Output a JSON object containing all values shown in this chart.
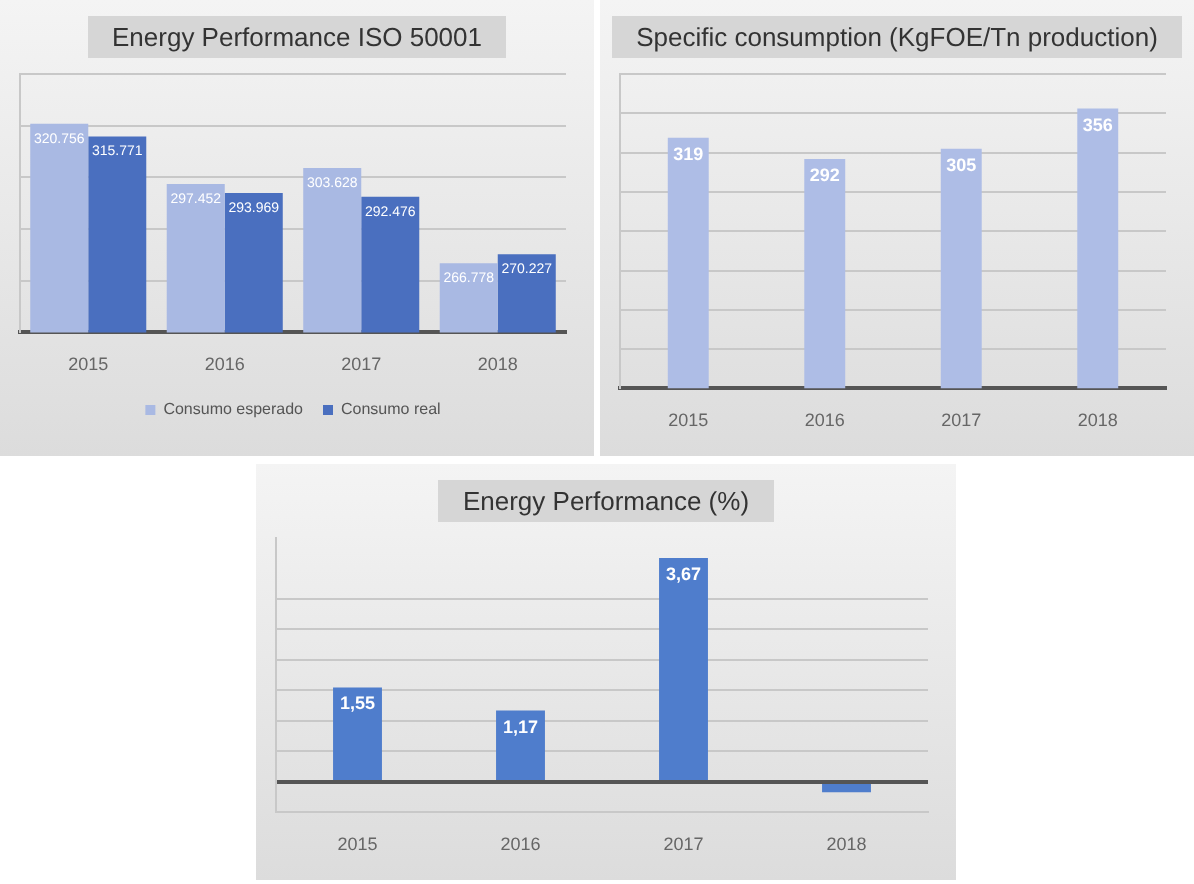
{
  "chart_data": [
    {
      "type": "bar",
      "title": "Energy Performance ISO 50001",
      "categories": [
        "2015",
        "2016",
        "2017",
        "2018"
      ],
      "series": [
        {
          "name": "Consumo esperado",
          "color": "#a9b9e3",
          "values": [
            320.756,
            297.452,
            303.628,
            266.778
          ]
        },
        {
          "name": "Consumo real",
          "color": "#4a6fbf",
          "values": [
            315.771,
            293.969,
            292.476,
            270.227
          ]
        }
      ],
      "ylim": [
        240,
        340
      ],
      "yticks": [
        {
          "value": 260,
          "label": null
        },
        {
          "value": 280,
          "label": null
        },
        {
          "value": 300,
          "label": null
        },
        {
          "value": 320,
          "label": null
        },
        {
          "value": 340,
          "label": null
        }
      ],
      "grid": "y",
      "legend": "bottom",
      "tick_labels": "x",
      "data_labels": true
    },
    {
      "type": "bar",
      "title": "Specific consumption (KgFOE/Tn production)",
      "categories": [
        "2015",
        "2016",
        "2017",
        "2018"
      ],
      "values": [
        319,
        292,
        305,
        356
      ],
      "color": "#aebde6",
      "ylim": [
        0,
        400
      ],
      "yticks": [
        {
          "value": 50,
          "label": null
        },
        {
          "value": 100,
          "label": null
        },
        {
          "value": 150,
          "label": null
        },
        {
          "value": 200,
          "label": null
        },
        {
          "value": 250,
          "label": null
        },
        {
          "value": 300,
          "label": null
        },
        {
          "value": 350,
          "label": null
        },
        {
          "value": 400,
          "label": null
        }
      ],
      "grid": "y",
      "tick_labels": "x",
      "data_labels": true
    },
    {
      "type": "bar",
      "title": "Energy Performance (%)",
      "categories": [
        "2015",
        "2016",
        "2017",
        "2018"
      ],
      "values": [
        1.55,
        1.17,
        3.67,
        -0.17
      ],
      "value_labels": [
        "1,55",
        "1,17",
        "3,67",
        null
      ],
      "color": "#4f7dcc",
      "ylim": [
        -0.5,
        4
      ],
      "yticks": [
        {
          "value": -0.5,
          "label": null
        },
        {
          "value": 0,
          "label": null
        },
        {
          "value": 0.5,
          "label": null
        },
        {
          "value": 1,
          "label": null
        },
        {
          "value": 1.5,
          "label": null
        },
        {
          "value": 2,
          "label": null
        },
        {
          "value": 2.5,
          "label": null
        },
        {
          "value": 3,
          "label": null
        }
      ],
      "grid": "y",
      "tick_labels": "x"
    }
  ]
}
